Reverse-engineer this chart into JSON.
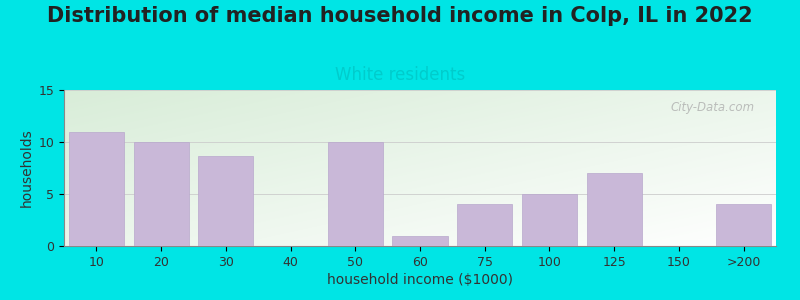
{
  "title": "Distribution of median household income in Colp, IL in 2022",
  "subtitle": "White residents",
  "xlabel": "household income ($1000)",
  "ylabel": "households",
  "categories": [
    "10",
    "20",
    "30",
    "40",
    "50",
    "60",
    "75",
    "100",
    "125",
    "150",
    ">200"
  ],
  "values": [
    11,
    10,
    8.7,
    0,
    10,
    1,
    4,
    5,
    7,
    0,
    4
  ],
  "bar_color": "#c9b8d8",
  "bar_edge_color": "#b8a8cc",
  "ylim": [
    0,
    15
  ],
  "yticks": [
    0,
    5,
    10,
    15
  ],
  "title_fontsize": 15,
  "subtitle_fontsize": 12,
  "subtitle_color": "#00cccc",
  "axis_label_fontsize": 10,
  "tick_fontsize": 9,
  "background_color": "#00e5e5",
  "plot_bg_color_topleft": "#d8edd8",
  "plot_bg_color_bottomright": "#f8fff8",
  "watermark_text": "City-Data.com",
  "title_color": "#222222"
}
